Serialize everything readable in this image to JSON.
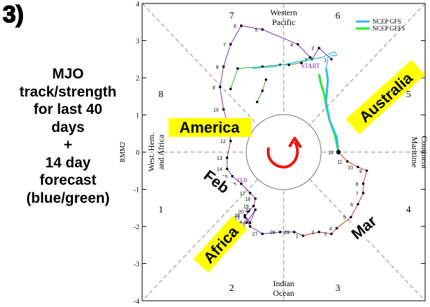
{
  "sidebar": {
    "panel_number": "3)",
    "caption_lines": [
      "MJO",
      "track/strength",
      "for last 40",
      "days",
      "+",
      "14 day",
      "forecast",
      "(blue/green)"
    ]
  },
  "legend": {
    "entries": [
      {
        "label": "NCEP GFS",
        "color": "#33bbee"
      },
      {
        "label": "NCEP GEFS",
        "color": "#22ee22"
      }
    ]
  },
  "phase_labels": {
    "sector_numbers": [
      "1",
      "2",
      "3",
      "4",
      "5",
      "6",
      "7",
      "8"
    ],
    "regions": {
      "top": [
        "Western",
        "Pacific"
      ],
      "bottom": [
        "Indian",
        "Ocean"
      ],
      "left": [
        "West. Hem.",
        "and Africa"
      ],
      "right": [
        "Maritime",
        "Continent"
      ]
    }
  },
  "annotations": {
    "america": "America",
    "australia": "Australia",
    "africa": "Africa",
    "feb": "Feb",
    "mar": "Mar",
    "start": "START",
    "fed": "FEB"
  },
  "colors": {
    "jan_track": "#7a2ea0",
    "mar_track": "#cc3322",
    "gfs": "#33bbee",
    "gefs": "#22ee22",
    "ensemble": "#33aa33",
    "callout_fill": "#ffff00",
    "arrow": "#ee1111"
  },
  "chart_data": {
    "type": "scatter",
    "title": "",
    "xlabel": "",
    "ylabel": "RMM2",
    "xlim": [
      -4,
      4
    ],
    "ylim": [
      -4,
      4
    ],
    "yticks": [
      -4,
      -3,
      -2,
      -1,
      0,
      1,
      2,
      3,
      4
    ],
    "grid": false,
    "legend_position": "top-right",
    "series": [
      {
        "key": "observed_jan",
        "labels": [
          "1",
          "2",
          "3",
          "4",
          "5",
          "6",
          "7",
          "8",
          "9",
          "10",
          "11",
          "12",
          "13",
          "14",
          "15"
        ],
        "x": [
          1.35,
          1.0,
          0.8,
          0.4,
          -0.6,
          -1.2,
          -1.5,
          -1.7,
          -1.8,
          -1.7,
          -1.55,
          -1.5,
          -1.6,
          -1.6,
          -1.45
        ],
        "y": [
          2.5,
          2.8,
          2.5,
          2.9,
          3.3,
          3.4,
          2.9,
          2.3,
          1.75,
          1.15,
          0.65,
          0.3,
          -0.15,
          -0.45,
          -0.65
        ]
      },
      {
        "key": "observed_feb",
        "labels": [
          "16",
          "17",
          "18",
          "19",
          "20",
          "21",
          "22",
          "23",
          "24",
          "25",
          "26",
          "27",
          "28",
          "29",
          "1"
        ],
        "x": [
          -1.2,
          -0.95,
          -0.8,
          -0.85,
          -1.0,
          -1.1,
          -1.05,
          -0.8,
          -0.95,
          -1.1,
          -0.95,
          -0.6,
          -0.1,
          0.3,
          0.55
        ],
        "y": [
          -0.85,
          -1.1,
          -1.25,
          -1.45,
          -1.6,
          -1.75,
          -1.9,
          -1.55,
          -1.9,
          -1.7,
          -2.0,
          -2.2,
          -2.15,
          -2.15,
          -2.25
        ]
      },
      {
        "key": "observed_mar",
        "labels": [
          "2",
          "3",
          "4",
          "5",
          "6",
          "7",
          "8",
          "9",
          "10",
          "11",
          "12"
        ],
        "x": [
          1.0,
          1.35,
          1.5,
          1.9,
          2.1,
          2.25,
          2.25,
          2.35,
          2.1,
          1.8,
          1.55
        ],
        "y": [
          -2.15,
          -2.2,
          -2.05,
          -1.75,
          -1.4,
          -1.1,
          -0.85,
          -0.5,
          -0.4,
          -0.25,
          0.0
        ]
      },
      {
        "key": "ncep_gfs",
        "name": "NCEP GFS",
        "x": [
          1.55,
          1.5,
          1.3,
          1.2,
          1.25,
          1.2,
          1.25,
          1.25,
          1.35,
          1.5,
          1.45,
          1.3,
          1.1,
          0.5,
          -0.3,
          -0.9
        ],
        "y": [
          0.0,
          0.4,
          0.85,
          1.35,
          1.95,
          2.25,
          2.5,
          2.55,
          2.6,
          2.6,
          2.7,
          2.65,
          2.55,
          2.45,
          2.3,
          2.25
        ]
      },
      {
        "key": "ncep_gefs",
        "name": "NCEP GEFS",
        "x": [
          1.55,
          1.45,
          1.3,
          1.2,
          1.15,
          1.05,
          1.0
        ],
        "y": [
          0.0,
          0.45,
          0.85,
          1.25,
          1.55,
          1.85,
          2.1
        ]
      },
      {
        "key": "ensemble_a",
        "x": [
          0.75,
          0.5,
          0.15,
          -0.1,
          -0.6,
          -1.3,
          -1.5
        ],
        "y": [
          2.55,
          2.4,
          2.35,
          2.35,
          2.3,
          2.25,
          1.7
        ]
      },
      {
        "key": "ensemble_b",
        "x": [
          -0.5,
          -0.6,
          -0.75
        ],
        "y": [
          1.95,
          1.65,
          1.35
        ]
      }
    ]
  }
}
